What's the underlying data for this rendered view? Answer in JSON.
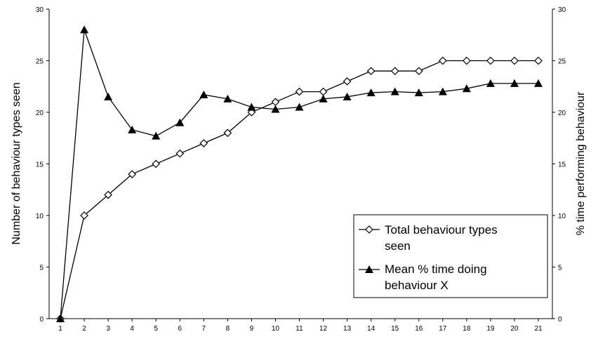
{
  "chart_data": {
    "type": "line",
    "title": "",
    "xlabel": "",
    "ylabel": "Number of behaviour types seen",
    "y2label": "% time performing behaviour",
    "x": [
      1,
      2,
      3,
      4,
      5,
      6,
      7,
      8,
      9,
      10,
      11,
      12,
      13,
      14,
      15,
      16,
      17,
      18,
      19,
      20,
      21
    ],
    "xticks": [
      "1",
      "2",
      "3",
      "4",
      "5",
      "6",
      "7",
      "8",
      "9",
      "10",
      "11",
      "12",
      "13",
      "14",
      "15",
      "16",
      "17",
      "18",
      "19",
      "20",
      "21"
    ],
    "ylim": [
      0,
      30
    ],
    "y2lim": [
      0,
      30
    ],
    "yticks": [
      "0",
      "5",
      "10",
      "15",
      "20",
      "25",
      "30"
    ],
    "y2ticks": [
      "0",
      "5",
      "10",
      "15",
      "20",
      "25",
      "30"
    ],
    "grid": false,
    "legend_position": "bottom-right",
    "series": [
      {
        "name": "Total behaviour types seen",
        "axis": "left",
        "marker": "open-diamond",
        "values": [
          0,
          10,
          12,
          14,
          15,
          16,
          17,
          18,
          20,
          21,
          22,
          22,
          23,
          24,
          24,
          24,
          25,
          25,
          25,
          25,
          25
        ]
      },
      {
        "name": "Mean % time doing behaviour X",
        "axis": "right",
        "marker": "filled-triangle",
        "values": [
          0,
          28,
          21.5,
          18.3,
          17.7,
          19,
          21.7,
          21.3,
          20.5,
          20.3,
          20.5,
          21.3,
          21.5,
          21.9,
          22,
          21.9,
          22,
          22.3,
          22.8,
          22.8,
          22.8
        ]
      }
    ]
  },
  "legend": {
    "entries": [
      {
        "line1": "Total behaviour types",
        "line2": "seen"
      },
      {
        "line1": "Mean % time doing",
        "line2": "behaviour X"
      }
    ]
  }
}
